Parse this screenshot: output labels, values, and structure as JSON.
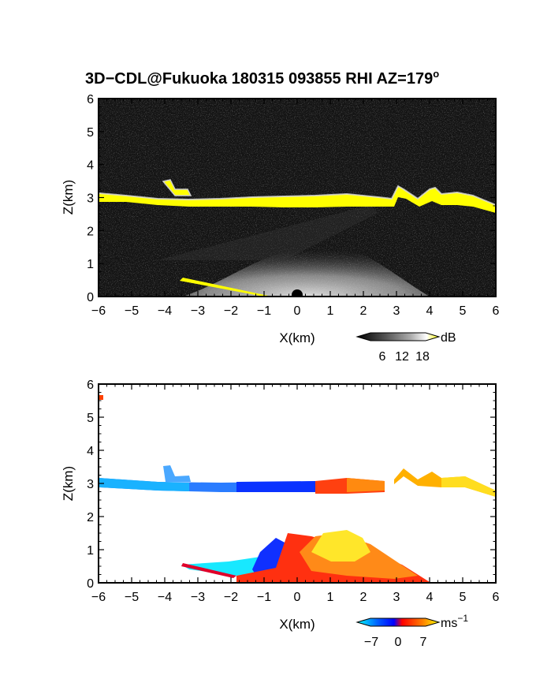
{
  "chart_data": [
    {
      "type": "heatmap",
      "title": "3D−CDL@Fukuoka 180315 093855 RHI AZ=179",
      "title_superscript": "o",
      "xlabel": "X(km)",
      "ylabel": "Z(km)",
      "xlim": [
        -6,
        6
      ],
      "ylim": [
        0,
        6
      ],
      "x_ticks": [
        "−6",
        "−5",
        "−4",
        "−3",
        "−2",
        "−1",
        "0",
        "1",
        "2",
        "3",
        "4",
        "5",
        "6"
      ],
      "y_ticks": [
        "0",
        "1",
        "2",
        "3",
        "4",
        "5",
        "6"
      ],
      "colorbar": {
        "unit": "dB",
        "ticks": [
          "6",
          "12",
          "18"
        ],
        "colors": [
          "#000000",
          "#555555",
          "#aaaaaa",
          "#ffffff",
          "#ffff00"
        ]
      },
      "features": {
        "cloud_layer_top": [
          [
            -6,
            3.0
          ],
          [
            -4,
            2.95
          ],
          [
            -2,
            2.85
          ],
          [
            0,
            2.82
          ],
          [
            1.5,
            2.95
          ],
          [
            2.6,
            2.85
          ],
          [
            3.0,
            3.3
          ],
          [
            3.5,
            2.95
          ],
          [
            4.0,
            3.2
          ],
          [
            5.0,
            3.0
          ],
          [
            6.0,
            2.65
          ]
        ],
        "ground_clutter_line": [
          [
            -3.5,
            0.55
          ],
          [
            -0.8,
            0.0
          ]
        ],
        "boundary_layer_peak_height": 1.5,
        "layer_value_color": "#ffff00",
        "background_color": "#1a1a1a"
      }
    },
    {
      "type": "heatmap",
      "xlabel": "X(km)",
      "ylabel": "Z(km)",
      "xlim": [
        -6,
        6
      ],
      "ylim": [
        0,
        6
      ],
      "x_ticks": [
        "−6",
        "−5",
        "−4",
        "−3",
        "−2",
        "−1",
        "0",
        "1",
        "2",
        "3",
        "4",
        "5",
        "6"
      ],
      "y_ticks": [
        "0",
        "1",
        "2",
        "3",
        "4",
        "5",
        "6"
      ],
      "colorbar": {
        "unit": "ms",
        "unit_superscript": "−1",
        "ticks": [
          "−7",
          "0",
          "7"
        ],
        "colors": [
          "#00ffff",
          "#0060ff",
          "#0000ff",
          "#ff0000",
          "#ff8000",
          "#ffff00"
        ]
      },
      "features": {
        "cloud_layer_velocity": [
          [
            -6,
            -6
          ],
          [
            -3,
            -5
          ],
          [
            -0.5,
            -7
          ],
          [
            0.5,
            1
          ],
          [
            2,
            3
          ],
          [
            3,
            4
          ],
          [
            5,
            6
          ],
          [
            6,
            7
          ]
        ],
        "boundary_layer_extent_x": [
          -3.5,
          4.0
        ],
        "boundary_layer_peak_height": 1.55,
        "isolated_point": [
          -5.95,
          5.6
        ]
      }
    }
  ]
}
